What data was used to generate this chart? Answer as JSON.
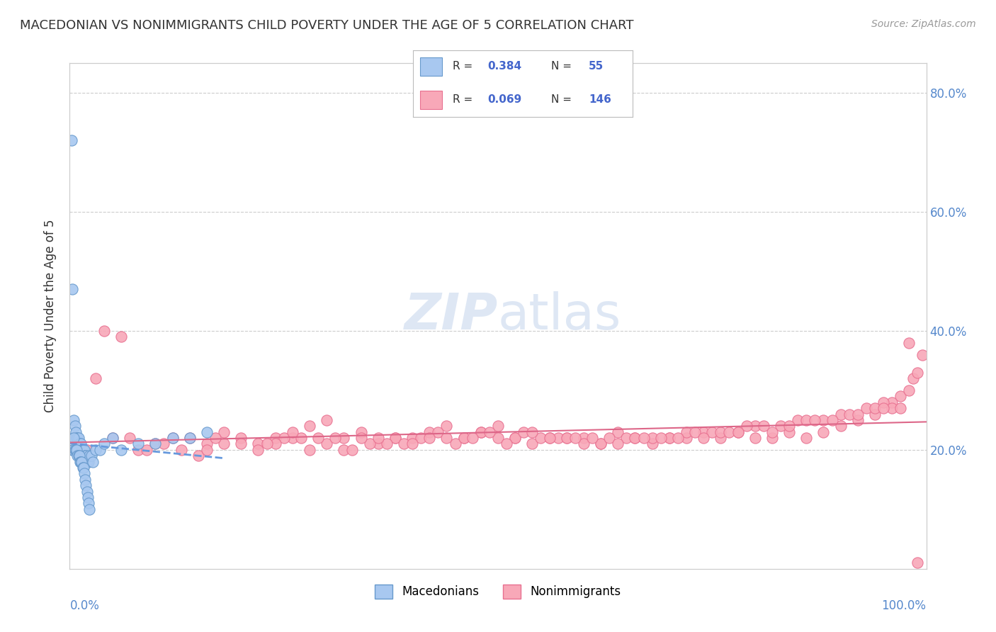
{
  "title": "MACEDONIAN VS NONIMMIGRANTS CHILD POVERTY UNDER THE AGE OF 5 CORRELATION CHART",
  "source": "Source: ZipAtlas.com",
  "ylabel": "Child Poverty Under the Age of 5",
  "xlim": [
    0,
    1
  ],
  "ylim": [
    0,
    0.85
  ],
  "macedonian_color": "#a8c8f0",
  "nonimmigrant_color": "#f8a8b8",
  "macedonian_edge": "#6699cc",
  "nonimmigrant_edge": "#e87090",
  "trend_macedonian": "#6699dd",
  "trend_nonimmigrant": "#dd6688",
  "background_color": "#ffffff",
  "grid_color": "#cccccc",
  "macedonian_x": [
    0.002,
    0.003,
    0.004,
    0.005,
    0.006,
    0.007,
    0.008,
    0.009,
    0.01,
    0.011,
    0.012,
    0.013,
    0.014,
    0.015,
    0.016,
    0.017,
    0.018,
    0.019,
    0.02,
    0.021,
    0.022,
    0.023,
    0.025,
    0.027,
    0.03,
    0.035,
    0.04,
    0.05,
    0.06,
    0.08,
    0.1,
    0.12,
    0.14,
    0.16,
    0.003,
    0.004,
    0.005,
    0.006,
    0.007,
    0.008,
    0.009,
    0.01,
    0.011,
    0.012,
    0.013,
    0.014,
    0.015,
    0.016,
    0.017,
    0.018,
    0.019,
    0.02,
    0.021,
    0.022,
    0.023
  ],
  "macedonian_y": [
    0.72,
    0.2,
    0.22,
    0.25,
    0.24,
    0.23,
    0.22,
    0.22,
    0.22,
    0.21,
    0.21,
    0.21,
    0.2,
    0.2,
    0.2,
    0.2,
    0.19,
    0.19,
    0.18,
    0.18,
    0.18,
    0.19,
    0.19,
    0.18,
    0.2,
    0.2,
    0.21,
    0.22,
    0.2,
    0.21,
    0.21,
    0.22,
    0.22,
    0.23,
    0.47,
    0.2,
    0.22,
    0.2,
    0.2,
    0.2,
    0.19,
    0.19,
    0.19,
    0.18,
    0.18,
    0.18,
    0.17,
    0.17,
    0.16,
    0.15,
    0.14,
    0.13,
    0.12,
    0.11,
    0.1
  ],
  "nonimmigrant_x": [
    0.02,
    0.05,
    0.08,
    0.1,
    0.12,
    0.14,
    0.16,
    0.18,
    0.2,
    0.22,
    0.24,
    0.26,
    0.28,
    0.3,
    0.32,
    0.34,
    0.36,
    0.38,
    0.4,
    0.42,
    0.44,
    0.46,
    0.48,
    0.5,
    0.52,
    0.54,
    0.56,
    0.58,
    0.6,
    0.62,
    0.64,
    0.66,
    0.68,
    0.7,
    0.72,
    0.74,
    0.76,
    0.78,
    0.8,
    0.82,
    0.84,
    0.86,
    0.88,
    0.9,
    0.92,
    0.94,
    0.96,
    0.97,
    0.98,
    0.985,
    0.99,
    0.995,
    0.5,
    0.28,
    0.35,
    0.41,
    0.48,
    0.55,
    0.62,
    0.7,
    0.75,
    0.8,
    0.85,
    0.9,
    0.95,
    0.15,
    0.22,
    0.3,
    0.38,
    0.45,
    0.52,
    0.6,
    0.68,
    0.76,
    0.83,
    0.91,
    0.96,
    0.13,
    0.18,
    0.25,
    0.32,
    0.39,
    0.46,
    0.53,
    0.61,
    0.69,
    0.77,
    0.84,
    0.92,
    0.97,
    0.17,
    0.24,
    0.31,
    0.43,
    0.57,
    0.65,
    0.72,
    0.79,
    0.86,
    0.93,
    0.09,
    0.2,
    0.29,
    0.37,
    0.44,
    0.51,
    0.58,
    0.66,
    0.73,
    0.81,
    0.88,
    0.94,
    0.11,
    0.16,
    0.23,
    0.27,
    0.33,
    0.4,
    0.47,
    0.54,
    0.63,
    0.71,
    0.78,
    0.87,
    0.95,
    0.06,
    0.42,
    0.49,
    0.56,
    0.04,
    0.67,
    0.74,
    0.82,
    0.89,
    0.98,
    0.03,
    0.07,
    0.34,
    0.36,
    0.99,
    0.26,
    0.59,
    0.64
  ],
  "nonimmigrant_y": [
    0.2,
    0.22,
    0.2,
    0.21,
    0.22,
    0.22,
    0.21,
    0.23,
    0.22,
    0.21,
    0.22,
    0.22,
    0.24,
    0.25,
    0.22,
    0.23,
    0.21,
    0.22,
    0.22,
    0.23,
    0.24,
    0.22,
    0.23,
    0.22,
    0.22,
    0.21,
    0.22,
    0.22,
    0.22,
    0.21,
    0.23,
    0.22,
    0.21,
    0.22,
    0.22,
    0.23,
    0.22,
    0.23,
    0.22,
    0.22,
    0.23,
    0.22,
    0.23,
    0.24,
    0.25,
    0.26,
    0.28,
    0.29,
    0.3,
    0.32,
    0.33,
    0.36,
    0.24,
    0.2,
    0.21,
    0.22,
    0.23,
    0.22,
    0.21,
    0.22,
    0.23,
    0.24,
    0.25,
    0.26,
    0.28,
    0.19,
    0.2,
    0.21,
    0.22,
    0.21,
    0.22,
    0.21,
    0.22,
    0.23,
    0.24,
    0.26,
    0.27,
    0.2,
    0.21,
    0.22,
    0.2,
    0.21,
    0.22,
    0.23,
    0.22,
    0.22,
    0.23,
    0.24,
    0.26,
    0.27,
    0.22,
    0.21,
    0.22,
    0.23,
    0.22,
    0.22,
    0.23,
    0.24,
    0.25,
    0.27,
    0.2,
    0.21,
    0.22,
    0.21,
    0.22,
    0.21,
    0.22,
    0.22,
    0.23,
    0.24,
    0.25,
    0.27,
    0.21,
    0.2,
    0.21,
    0.22,
    0.2,
    0.21,
    0.22,
    0.23,
    0.22,
    0.22,
    0.23,
    0.25,
    0.27,
    0.39,
    0.22,
    0.23,
    0.22,
    0.4,
    0.22,
    0.22,
    0.23,
    0.25,
    0.38,
    0.32,
    0.22,
    0.22,
    0.22,
    0.01,
    0.23,
    0.22,
    0.21
  ]
}
